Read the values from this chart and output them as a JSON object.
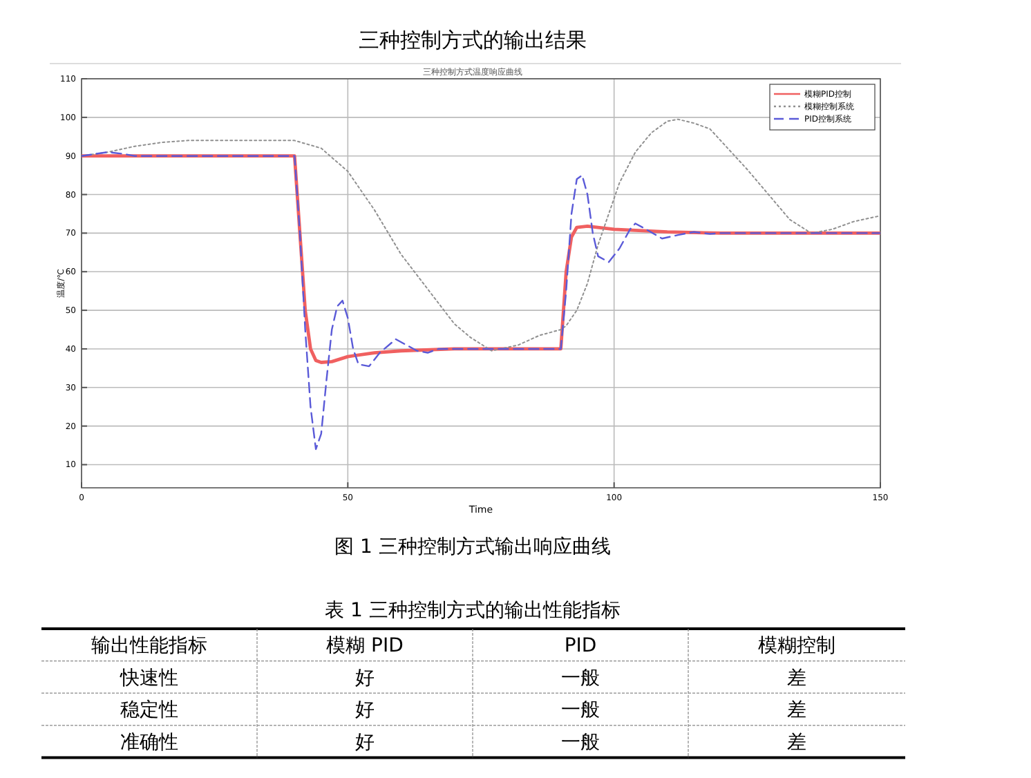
{
  "chart_data": [
    {
      "type": "line",
      "title": "三种控制方式的输出结果",
      "subtitle": "三种控制方式温度响应曲线",
      "xlabel": "Time",
      "ylabel": "温度/℃",
      "annotations": [
        "图 1 三种控制方式输出响应曲线"
      ],
      "xlim": [
        0,
        150
      ],
      "xticks": [
        0,
        50,
        100,
        150
      ],
      "ylim": [
        4,
        110
      ],
      "yticks": [
        10,
        20,
        30,
        40,
        50,
        60,
        70,
        80,
        90,
        100,
        110
      ],
      "grid": true,
      "legend": "top right",
      "series": [
        {
          "name": "模糊PID控制",
          "color": "#f06060",
          "line_style": "solid",
          "x": [
            0,
            40,
            41,
            42,
            43,
            44,
            45,
            47,
            50,
            55,
            60,
            70,
            90,
            91,
            92,
            93,
            95,
            100,
            110,
            120,
            150
          ],
          "values": [
            90,
            90,
            70,
            50,
            40,
            37,
            36.5,
            36.7,
            38,
            39,
            39.5,
            40,
            40,
            60,
            69,
            71.5,
            71.8,
            71,
            70.3,
            70,
            70
          ]
        },
        {
          "name": "模糊控制系统",
          "color": "#909090",
          "line_style": "dotted",
          "x": [
            0,
            5,
            10,
            15,
            20,
            30,
            40,
            45,
            50,
            55,
            60,
            65,
            70,
            73,
            77,
            82,
            86,
            90,
            91,
            93,
            95,
            97,
            99,
            101,
            104,
            107,
            110,
            112,
            115,
            118,
            122,
            125,
            129,
            133,
            137,
            141,
            145,
            150
          ],
          "values": [
            90,
            91,
            92.5,
            93.5,
            94,
            94,
            94,
            92,
            86,
            76,
            64.5,
            55.5,
            46.5,
            43,
            39.5,
            41,
            43.5,
            45,
            46,
            50,
            57,
            67,
            75,
            83,
            91,
            96,
            99,
            99.5,
            98.5,
            97,
            91,
            86.5,
            80,
            73.5,
            70,
            71,
            73,
            74.5
          ]
        },
        {
          "name": "PID控制系统",
          "color": "#5a5ad8",
          "line_style": "dashed",
          "x": [
            0,
            5,
            8,
            10,
            40,
            41,
            42,
            43,
            44,
            45,
            46,
            47,
            48,
            49,
            50,
            51,
            52,
            54,
            56,
            59,
            61,
            63,
            65,
            67,
            70,
            90,
            91,
            92,
            93,
            94,
            95,
            96,
            97,
            99,
            101,
            103,
            104,
            106,
            109,
            112,
            115,
            118,
            120,
            150
          ],
          "values": [
            90,
            91,
            90.5,
            90,
            90,
            70,
            45,
            25,
            14,
            18,
            32,
            45,
            51,
            52.5,
            48,
            40,
            36,
            35.5,
            39,
            42.5,
            41,
            39.5,
            39,
            40,
            40,
            40,
            55,
            75,
            84,
            85,
            80,
            70,
            64,
            62.5,
            66,
            71,
            72.5,
            71,
            68.6,
            69.5,
            70.3,
            69.8,
            70,
            70
          ]
        }
      ]
    },
    {
      "type": "other",
      "title": "表 1 三种控制方式的输出性能指标",
      "annotations": [
        "输出性能指标",
        "模糊 PID",
        "PID",
        "模糊控制",
        "快速性",
        "好",
        "一般",
        "差",
        "稳定性",
        "好",
        "一般",
        "差",
        "准确性",
        "好",
        "一般",
        "差"
      ]
    }
  ]
}
